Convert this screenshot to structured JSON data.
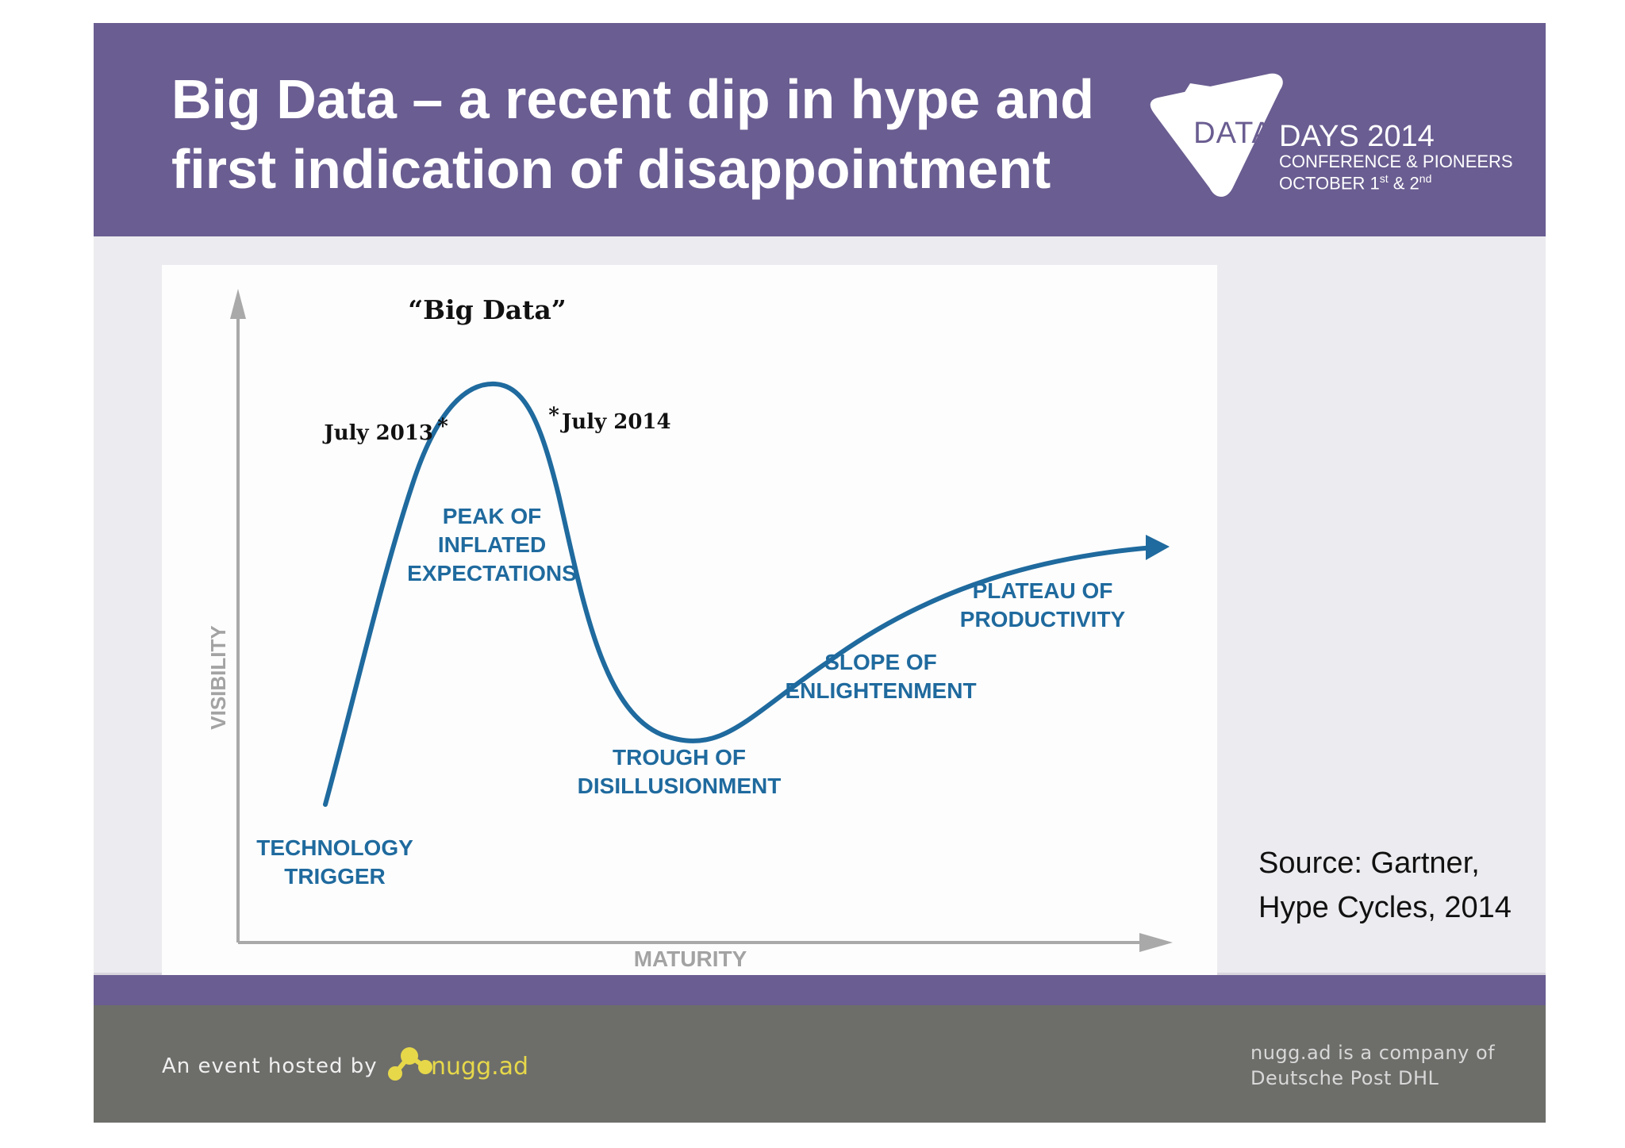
{
  "header": {
    "title_line1": "Big Data – a recent dip in hype and",
    "title_line2": "first indication of disappointment",
    "background_color": "#6a5d91"
  },
  "event_logo": {
    "word": "DATA",
    "days": "DAYS 2014",
    "conference": "CONFERENCE & PIONEERS",
    "october": "OCTOBER 1",
    "first_suffix": "st",
    "and": " & 2",
    "second_suffix": "nd"
  },
  "hype_cycle": {
    "y_axis_label": "VISIBILITY",
    "x_axis_label": "MATURITY",
    "highlight_label": "“Big Data”",
    "markers": [
      {
        "label": "July 2013",
        "star": "*"
      },
      {
        "label": "July 2014",
        "star": "*"
      }
    ],
    "phases": [
      {
        "line1": "TECHNOLOGY",
        "line2": "TRIGGER"
      },
      {
        "line1": "PEAK OF",
        "line2": "INFLATED",
        "line3": "EXPECTATIONS"
      },
      {
        "line1": "TROUGH OF",
        "line2": "DISILLUSIONMENT"
      },
      {
        "line1": "SLOPE OF",
        "line2": "ENLIGHTENMENT"
      },
      {
        "line1": "PLATEAU OF",
        "line2": "PRODUCTIVITY"
      }
    ],
    "curve_color": "#1f6a9e",
    "axis_color": "#a9a9a9"
  },
  "source": {
    "line1": "Source: Gartner,",
    "line2": "Hype Cycles, 2014"
  },
  "footer": {
    "hosted_by": "An event hosted by",
    "brand": "nugg.ad",
    "company_line1": "nugg.ad is a company of",
    "company_line2": "Deutsche Post DHL",
    "background_color": "#6d6e6a"
  }
}
